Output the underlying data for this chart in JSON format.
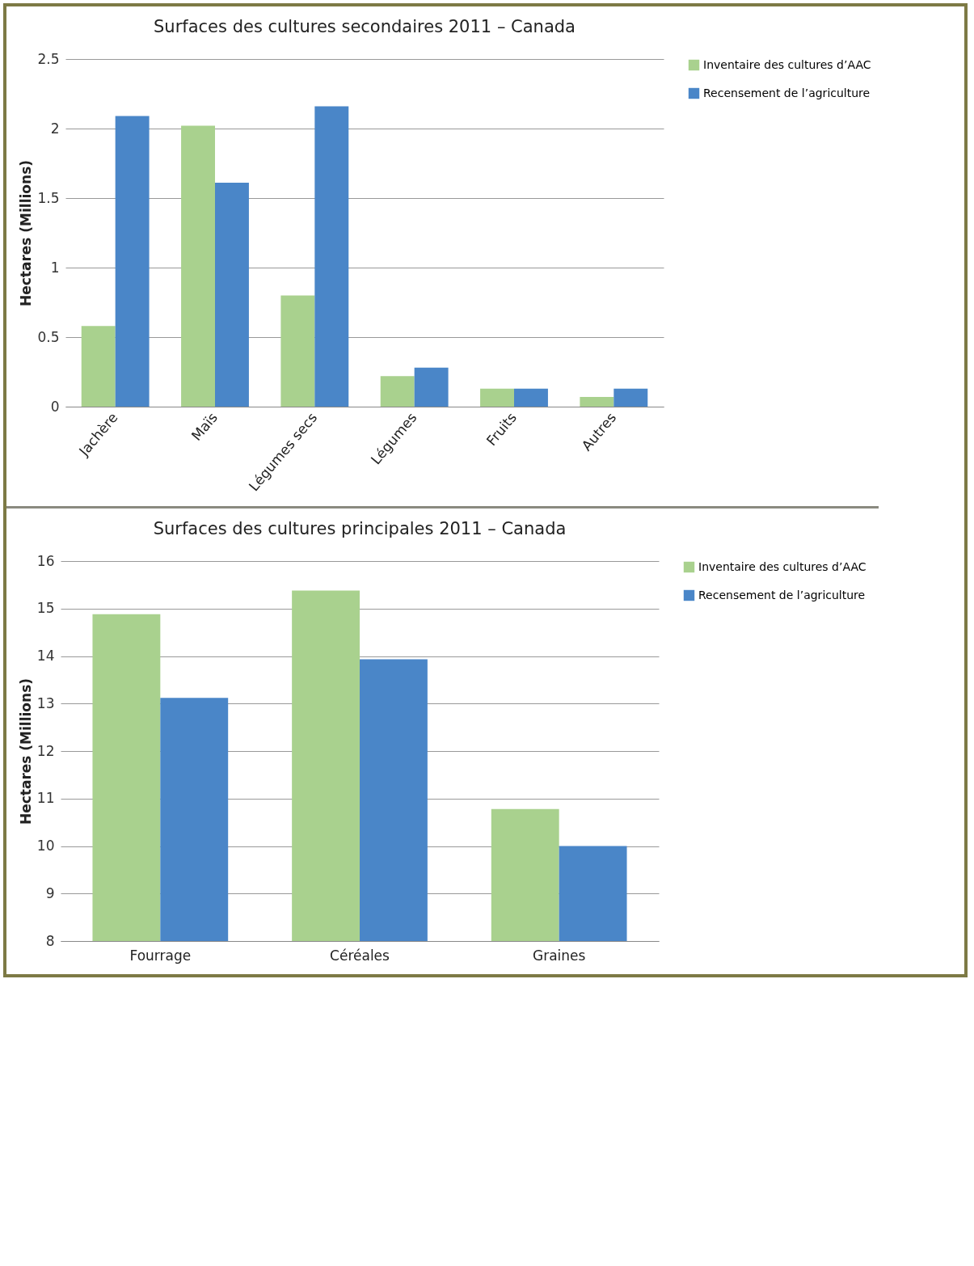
{
  "chart_data": [
    {
      "type": "bar",
      "title": "Surfaces des cultures secondaires 2011 – Canada",
      "ylabel": "Hectares (Millions)",
      "categories": [
        "Jachère",
        "Maïs",
        "Légumes secs",
        "Légumes",
        "Fruits",
        "Autres"
      ],
      "series": [
        {
          "name": "Inventaire des cultures d’AAC",
          "color": "#a9d18e",
          "values": [
            0.58,
            2.02,
            0.8,
            0.22,
            0.13,
            0.07
          ]
        },
        {
          "name": "Recensement de l’agriculture",
          "color": "#4a86c8",
          "values": [
            2.09,
            1.61,
            2.16,
            0.28,
            0.13,
            0.13
          ]
        }
      ],
      "ylim": [
        0,
        2.5
      ],
      "yticks": [
        0,
        0.5,
        1,
        1.5,
        2,
        2.5
      ],
      "grid": "y",
      "legend": "right"
    },
    {
      "type": "bar",
      "title": "Surfaces des cultures principales 2011 – Canada",
      "ylabel": "Hectares (Millions)",
      "categories": [
        "Fourrage",
        "Céréales",
        "Graines"
      ],
      "series": [
        {
          "name": "Inventaire des cultures d’AAC",
          "color": "#a9d18e",
          "values": [
            14.88,
            15.38,
            10.78
          ]
        },
        {
          "name": "Recensement de l’agriculture",
          "color": "#4a86c8",
          "values": [
            13.12,
            13.93,
            10.0
          ]
        }
      ],
      "ylim": [
        8,
        16
      ],
      "yticks": [
        8,
        9,
        10,
        11,
        12,
        13,
        14,
        15,
        16
      ],
      "grid": "y",
      "legend": "right"
    }
  ]
}
